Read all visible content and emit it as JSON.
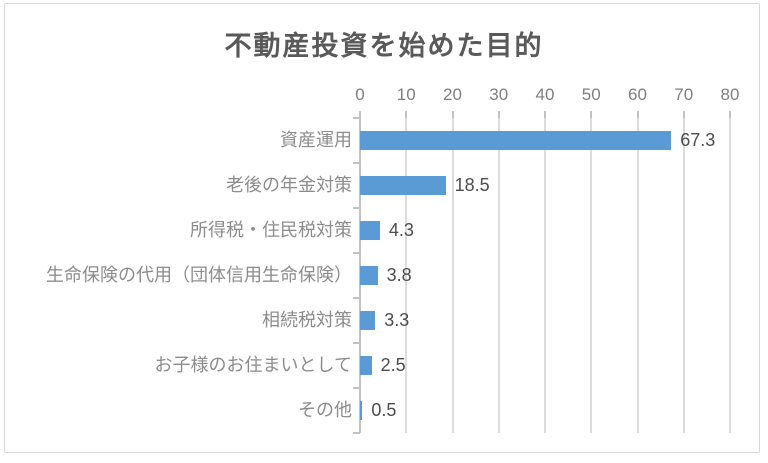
{
  "chart_data": {
    "type": "bar",
    "orientation": "horizontal",
    "title": "不動産投資を始めた目的",
    "categories": [
      "資産運用",
      "老後の年金対策",
      "所得税・住民税対策",
      "生命保険の代用（団体信用生命保険）",
      "相続税対策",
      "お子様のお住まいとして",
      "その他"
    ],
    "values": [
      67.3,
      18.5,
      4.3,
      3.8,
      3.3,
      2.5,
      0.5
    ],
    "data_labels": [
      "67.3",
      "18.5",
      "4.3",
      "3.8",
      "3.3",
      "2.5",
      "0.5"
    ],
    "xlabel": "",
    "ylabel": "",
    "xlim": [
      0,
      80
    ],
    "xticks": [
      0,
      10,
      20,
      30,
      40,
      50,
      60,
      70,
      80
    ],
    "xtick_labels": [
      "0",
      "10",
      "20",
      "30",
      "40",
      "50",
      "60",
      "70",
      "80"
    ],
    "axis_position": "top",
    "grid": true,
    "legend": "none",
    "colors": {
      "bar": "#5B9BD5",
      "title": "#595959",
      "axis_label_text": "#7F7F7F",
      "category_label_text": "#8C8C8C",
      "data_label_text": "#4D4D4D",
      "gridline": "#DCDCDC",
      "axis_line": "#C2C2C2",
      "border": "#D9D9D9",
      "background": "#FFFFFF"
    }
  }
}
